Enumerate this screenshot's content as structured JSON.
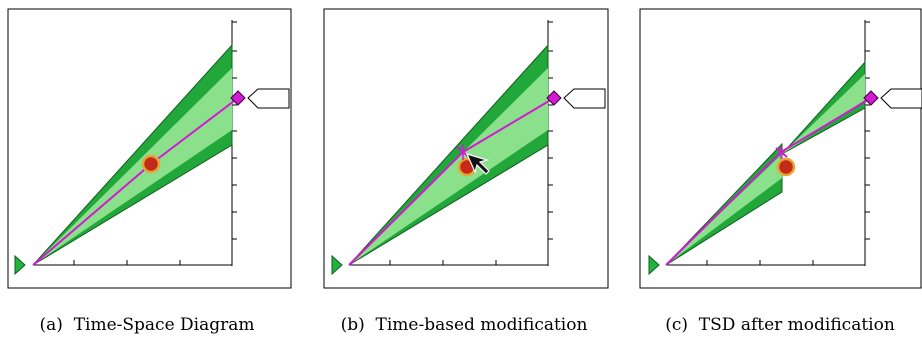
{
  "panels": [
    {
      "caption": "(a)  Time-Space Diagram"
    },
    {
      "caption": "(b)  Time-based modification"
    },
    {
      "caption": "(c)  TSD after modification"
    }
  ],
  "colors": {
    "cone_outer": "#22a83a",
    "cone_inner": "#8be08c",
    "path": "#d21ad2",
    "waypoint": "#d21ad2",
    "start_marker": "#22b33e",
    "aircraft_fill": "#c42a1a",
    "aircraft_ring": "#e8a534",
    "frame": "#000000"
  }
}
